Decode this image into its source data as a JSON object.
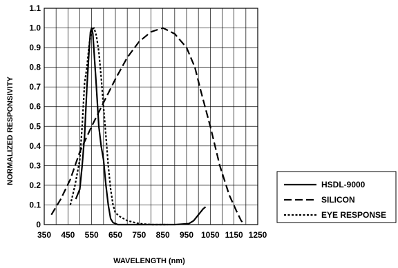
{
  "chart_data": {
    "type": "line",
    "title": "",
    "xlabel": "WAVELENGTH (nm)",
    "ylabel": "NORMALIZED RESPONSIVITY",
    "xlim": [
      350,
      1250
    ],
    "ylim": [
      0,
      1.1
    ],
    "x_ticks": [
      "350",
      "450",
      "550",
      "650",
      "750",
      "850",
      "950",
      "1050",
      "1150",
      "1250"
    ],
    "y_ticks": [
      "0",
      "0.1",
      "0.2",
      "0.3",
      "0.4",
      "0.5",
      "0.6",
      "0.7",
      "0.8",
      "0.9",
      "1.0",
      "1.1"
    ],
    "grid": true,
    "legend_position": "outside-bottom-right",
    "series": [
      {
        "name": "HSDL-9000",
        "style": "solid",
        "color": "#000000",
        "points": [
          [
            483,
            0.13
          ],
          [
            500,
            0.18
          ],
          [
            510,
            0.3
          ],
          [
            520,
            0.45
          ],
          [
            530,
            0.7
          ],
          [
            540,
            0.9
          ],
          [
            545,
            0.98
          ],
          [
            550,
            1.0
          ],
          [
            555,
            0.97
          ],
          [
            560,
            0.88
          ],
          [
            570,
            0.7
          ],
          [
            580,
            0.5
          ],
          [
            590,
            0.4
          ],
          [
            600,
            0.33
          ],
          [
            610,
            0.2
          ],
          [
            620,
            0.1
          ],
          [
            630,
            0.03
          ],
          [
            640,
            0.01
          ],
          [
            660,
            0.0
          ],
          [
            750,
            0.0
          ],
          [
            900,
            0.0
          ],
          [
            960,
            0.005
          ],
          [
            980,
            0.02
          ],
          [
            1000,
            0.05
          ],
          [
            1020,
            0.08
          ],
          [
            1030,
            0.09
          ]
        ]
      },
      {
        "name": "SILICON",
        "style": "dashed",
        "color": "#000000",
        "points": [
          [
            380,
            0.05
          ],
          [
            420,
            0.13
          ],
          [
            460,
            0.23
          ],
          [
            500,
            0.37
          ],
          [
            550,
            0.5
          ],
          [
            600,
            0.62
          ],
          [
            650,
            0.74
          ],
          [
            700,
            0.85
          ],
          [
            750,
            0.93
          ],
          [
            800,
            0.98
          ],
          [
            850,
            1.0
          ],
          [
            900,
            0.97
          ],
          [
            950,
            0.9
          ],
          [
            985,
            0.8
          ],
          [
            1010,
            0.68
          ],
          [
            1050,
            0.5
          ],
          [
            1090,
            0.3
          ],
          [
            1130,
            0.15
          ],
          [
            1160,
            0.07
          ],
          [
            1180,
            0.02
          ],
          [
            1195,
            0.0
          ]
        ]
      },
      {
        "name": "EYE RESPONSE",
        "style": "dotted",
        "color": "#000000",
        "points": [
          [
            460,
            0.1
          ],
          [
            480,
            0.2
          ],
          [
            500,
            0.33
          ],
          [
            510,
            0.5
          ],
          [
            520,
            0.72
          ],
          [
            530,
            0.8
          ],
          [
            540,
            0.92
          ],
          [
            550,
            0.99
          ],
          [
            560,
            1.0
          ],
          [
            570,
            0.96
          ],
          [
            580,
            0.88
          ],
          [
            590,
            0.75
          ],
          [
            600,
            0.6
          ],
          [
            610,
            0.45
          ],
          [
            620,
            0.3
          ],
          [
            630,
            0.18
          ],
          [
            640,
            0.1
          ],
          [
            650,
            0.06
          ],
          [
            670,
            0.04
          ],
          [
            700,
            0.02
          ],
          [
            750,
            0.005
          ],
          [
            800,
            0.0
          ],
          [
            870,
            0.0
          ]
        ]
      }
    ]
  }
}
